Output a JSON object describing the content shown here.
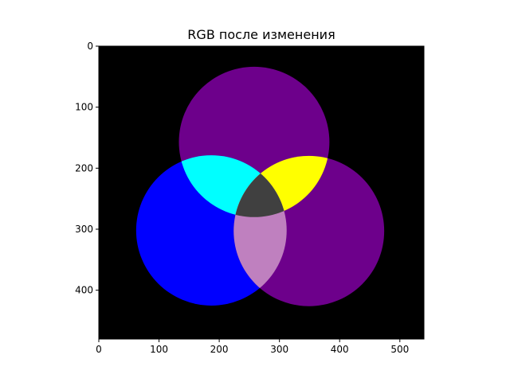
{
  "chart_data": {
    "type": "image",
    "title": "RGB после изменения",
    "xlabel": "",
    "ylabel": "",
    "xlim": [
      0,
      540
    ],
    "ylim": [
      0,
      480
    ],
    "x_ticks": [
      0,
      100,
      200,
      300,
      400,
      500
    ],
    "y_ticks": [
      0,
      100,
      200,
      300,
      400
    ],
    "background": "#000000",
    "circles": [
      {
        "name": "top",
        "cx": 258,
        "cy": 157,
        "r": 125,
        "color": "#6d008b"
      },
      {
        "name": "left",
        "cx": 187,
        "cy": 302,
        "r": 125,
        "color": "#0000ff"
      },
      {
        "name": "right",
        "cx": 349,
        "cy": 303,
        "r": 125,
        "color": "#6d008b"
      }
    ],
    "overlaps": [
      {
        "name": "top-left",
        "circles": [
          "top",
          "left"
        ],
        "color": "#00ffff"
      },
      {
        "name": "top-right",
        "circles": [
          "top",
          "right"
        ],
        "color": "#ffff00"
      },
      {
        "name": "left-right",
        "circles": [
          "left",
          "right"
        ],
        "color": "#bf80bf"
      },
      {
        "name": "center",
        "circles": [
          "top",
          "left",
          "right"
        ],
        "color": "#404040"
      }
    ]
  }
}
